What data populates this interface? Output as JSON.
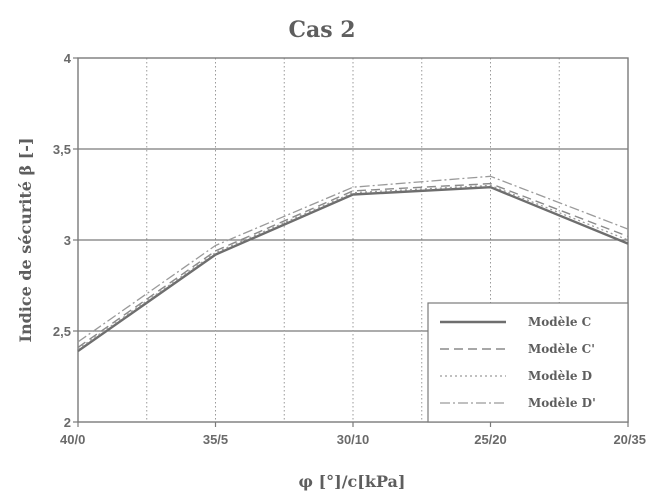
{
  "chart_data": {
    "type": "line",
    "title": "Cas 2",
    "xlabel": "φ [°]/c[kPa]",
    "ylabel": "Indice de sécurité β [-]",
    "categories": [
      "40/0",
      "35/5",
      "30/10",
      "25/20",
      "20/35"
    ],
    "ylim": [
      2,
      4
    ],
    "yticks": [
      "2",
      "2,5",
      "3",
      "3,5",
      "4"
    ],
    "grid": {
      "major_y": true,
      "minor_x": "dotted",
      "major_x": "dotted"
    },
    "legend_position": "bottom-right",
    "series": [
      {
        "name": "Modèle C",
        "values": [
          2.39,
          2.92,
          3.25,
          3.29,
          2.98
        ],
        "dash": "",
        "color": "#6e6e6e",
        "width": 2.4
      },
      {
        "name": "Modèle C'",
        "values": [
          2.41,
          2.94,
          3.27,
          3.31,
          3.02
        ],
        "dash": "9,5",
        "color": "#8a8a8a",
        "width": 1.4
      },
      {
        "name": "Modèle D",
        "values": [
          2.4,
          2.93,
          3.26,
          3.3,
          3.0
        ],
        "dash": "2,3",
        "color": "#9a9a9a",
        "width": 1.3
      },
      {
        "name": "Modèle D'",
        "values": [
          2.44,
          2.97,
          3.29,
          3.35,
          3.06
        ],
        "dash": "10,3,2,3",
        "color": "#9a9a9a",
        "width": 1.3
      }
    ]
  }
}
